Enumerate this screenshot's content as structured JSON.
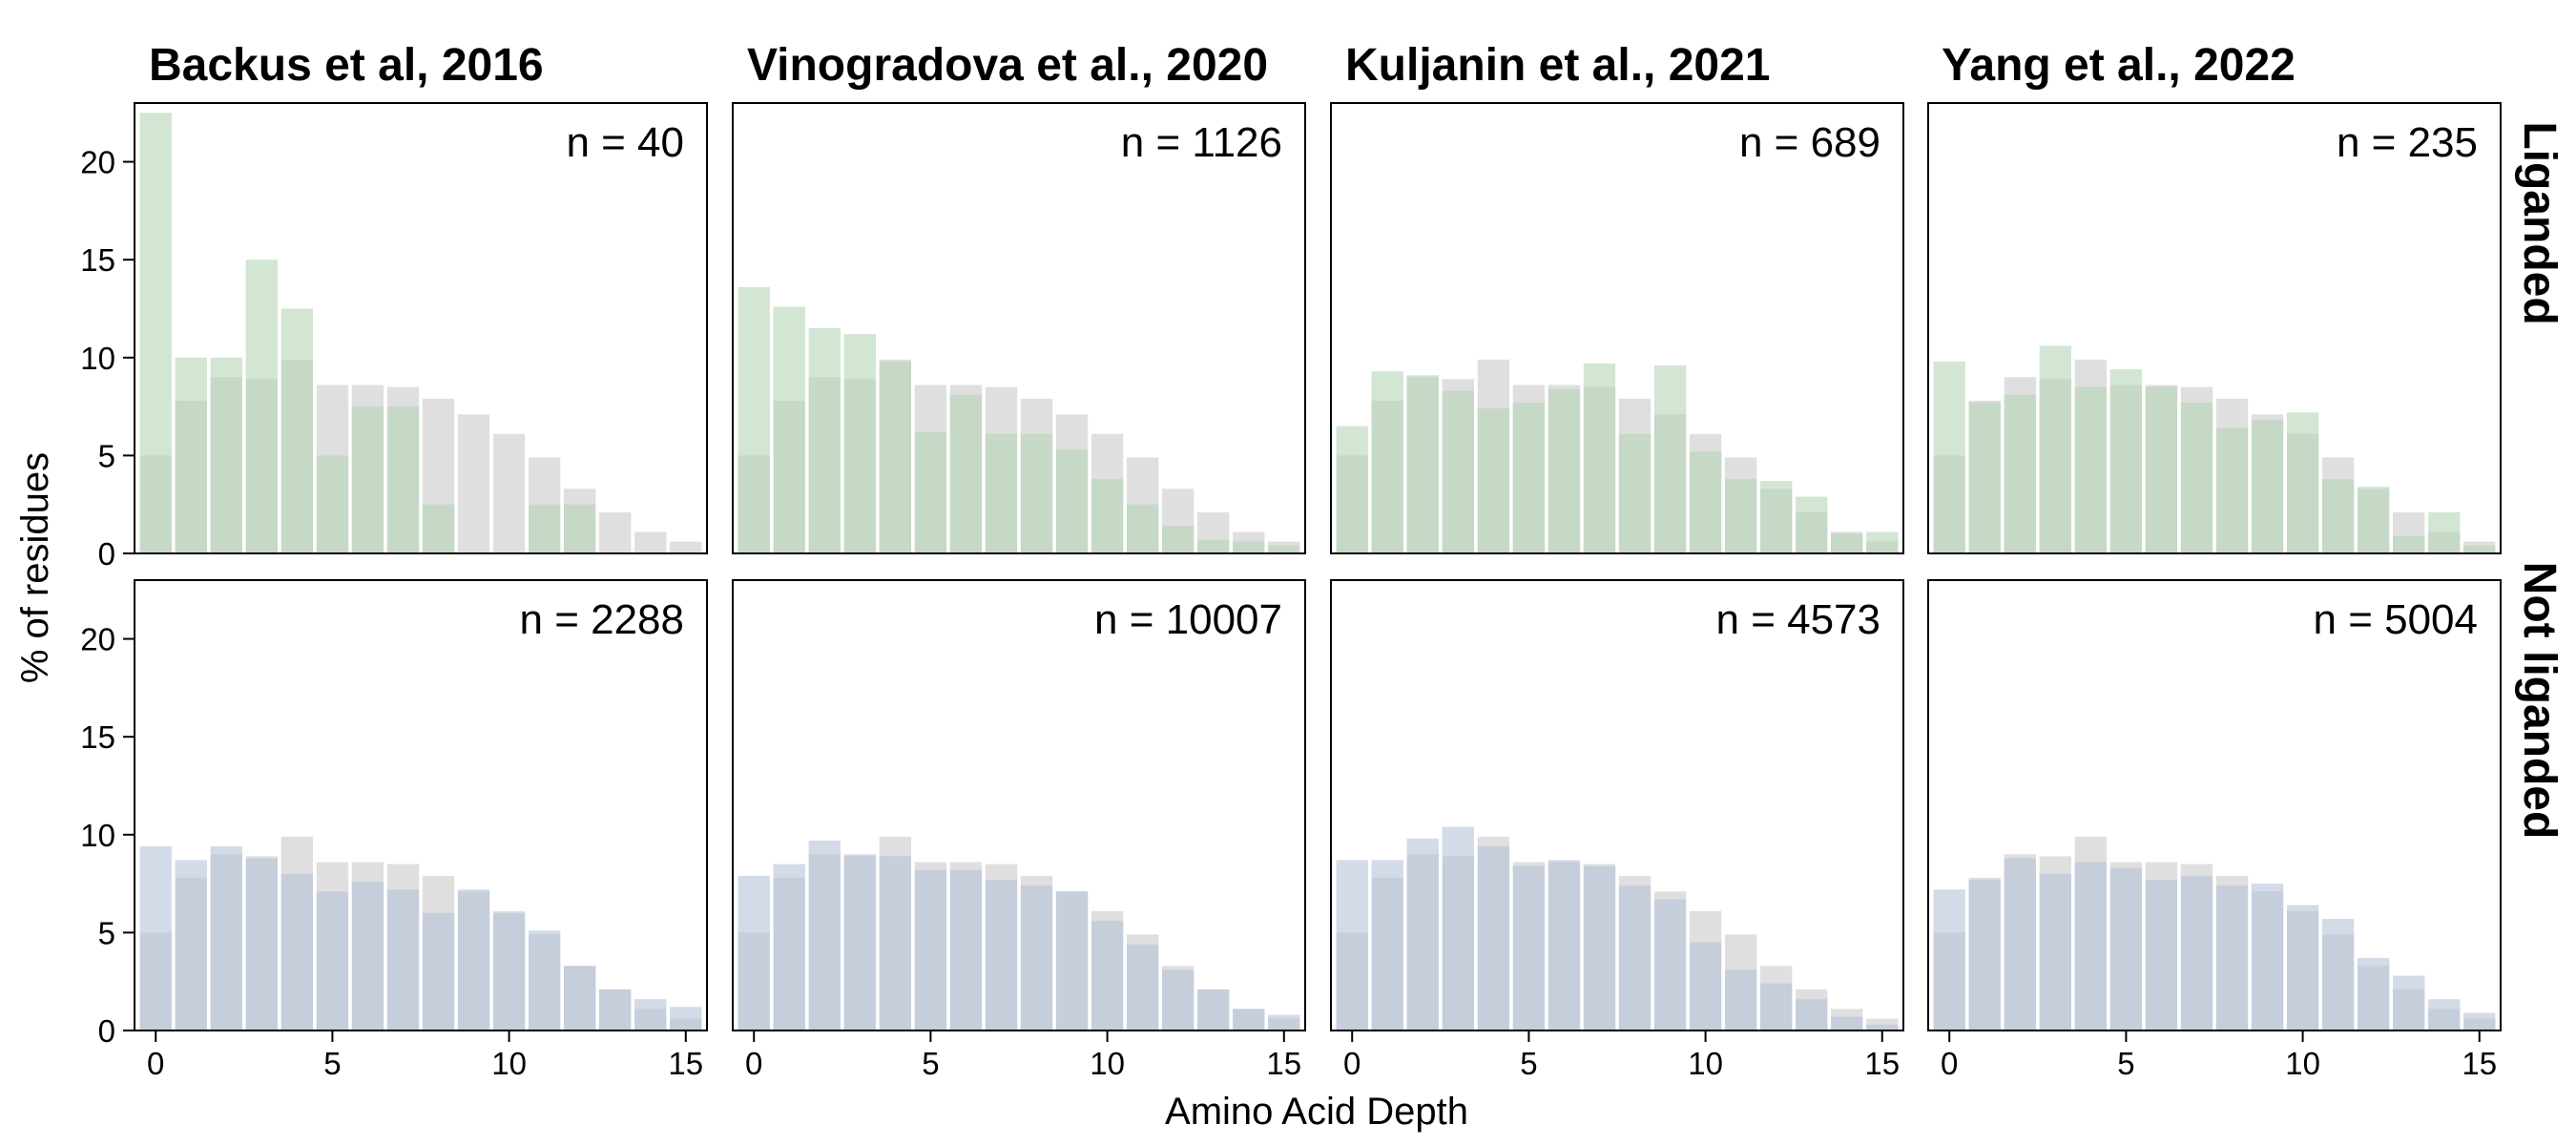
{
  "chart_data": {
    "type": "bar",
    "layout": "faceted-grid",
    "xlabel": "Amino Acid Depth",
    "ylabel": "% of residues",
    "x": [
      0,
      1,
      2,
      3,
      4,
      5,
      6,
      7,
      8,
      9,
      10,
      11,
      12,
      13,
      14,
      15
    ],
    "xticks": [
      0,
      5,
      10,
      15
    ],
    "yticks": [
      0,
      5,
      10,
      15,
      20
    ],
    "xlim": [
      -0.6,
      15.6
    ],
    "ylim": [
      0,
      23
    ],
    "grid": false,
    "columns": [
      "Backus et al, 2016",
      "Vinogradova et al., 2020",
      "Kuljanin et al., 2021",
      "Yang et al., 2022"
    ],
    "rows": [
      "Liganded",
      "Not liganded"
    ],
    "colors": {
      "background_series": "#d4d4d4",
      "liganded": "#b5d3b5",
      "not_liganded": "#b5c1d8",
      "overlap_liganded": "#b5c5b2",
      "overlap_not_liganded": "#b7bfcc"
    },
    "background": [
      5.0,
      7.8,
      9.0,
      8.9,
      9.9,
      8.6,
      8.6,
      8.5,
      7.9,
      7.1,
      6.1,
      4.9,
      3.3,
      2.1,
      1.1,
      0.6
    ],
    "panels": [
      {
        "row": 0,
        "col": 0,
        "n": "n = 40",
        "values": [
          22.5,
          10.0,
          10.0,
          15.0,
          12.5,
          5.0,
          7.5,
          7.5,
          2.5,
          0,
          0,
          2.5,
          2.5,
          0,
          0,
          0
        ]
      },
      {
        "row": 0,
        "col": 1,
        "n": "n = 1126",
        "values": [
          13.6,
          12.6,
          11.5,
          11.2,
          9.8,
          6.2,
          8.1,
          6.1,
          6.1,
          5.3,
          3.8,
          2.5,
          1.4,
          0.7,
          0.6,
          0.4
        ]
      },
      {
        "row": 0,
        "col": 2,
        "n": "n = 689",
        "values": [
          6.5,
          9.3,
          9.1,
          8.3,
          7.4,
          7.7,
          8.4,
          9.7,
          6.1,
          9.6,
          5.2,
          3.8,
          3.7,
          2.9,
          1.0,
          1.1
        ]
      },
      {
        "row": 0,
        "col": 3,
        "n": "n = 235",
        "values": [
          9.8,
          7.7,
          8.1,
          10.6,
          8.5,
          9.4,
          8.5,
          7.7,
          6.4,
          6.8,
          7.2,
          3.8,
          3.4,
          0.9,
          2.1,
          0.4
        ]
      },
      {
        "row": 1,
        "col": 0,
        "n": "n = 2288",
        "values": [
          9.4,
          8.7,
          9.4,
          8.8,
          8.0,
          7.1,
          7.6,
          7.2,
          6.0,
          7.2,
          6.0,
          5.1,
          3.3,
          2.1,
          1.6,
          1.2
        ]
      },
      {
        "row": 1,
        "col": 1,
        "n": "n = 10007",
        "values": [
          7.9,
          8.5,
          9.7,
          9.0,
          8.9,
          8.2,
          8.2,
          7.7,
          7.4,
          7.1,
          5.6,
          4.4,
          3.1,
          2.1,
          1.1,
          0.8
        ]
      },
      {
        "row": 1,
        "col": 2,
        "n": "n = 4573",
        "values": [
          8.7,
          8.7,
          9.8,
          10.4,
          9.4,
          8.4,
          8.7,
          8.4,
          7.4,
          6.7,
          4.5,
          3.1,
          2.4,
          1.6,
          0.7,
          0.3
        ]
      },
      {
        "row": 1,
        "col": 3,
        "n": "n = 5004",
        "values": [
          7.2,
          7.7,
          8.8,
          8.0,
          8.6,
          8.3,
          7.7,
          7.9,
          7.4,
          7.5,
          6.4,
          5.7,
          3.7,
          2.8,
          1.6,
          0.9
        ]
      }
    ]
  }
}
